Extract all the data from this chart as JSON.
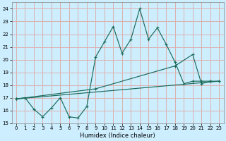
{
  "title": "",
  "xlabel": "Humidex (Indice chaleur)",
  "bg_color": "#cceeff",
  "grid_color": "#ddb0b0",
  "line_color": "#1a6b5a",
  "xlim": [
    -0.5,
    23.5
  ],
  "ylim": [
    15,
    24.5
  ],
  "yticks": [
    15,
    16,
    17,
    18,
    19,
    20,
    21,
    22,
    23,
    24
  ],
  "xticks": [
    0,
    1,
    2,
    3,
    4,
    5,
    6,
    7,
    8,
    9,
    10,
    11,
    12,
    13,
    14,
    15,
    16,
    17,
    18,
    19,
    20,
    21,
    22,
    23
  ],
  "series": [
    {
      "x": [
        0,
        1,
        2,
        3,
        4,
        5,
        6,
        7,
        8,
        9,
        10,
        11,
        12,
        13,
        14,
        15,
        16,
        17,
        18,
        19,
        20,
        21,
        22
      ],
      "y": [
        16.9,
        17.0,
        16.1,
        15.5,
        16.2,
        17.0,
        15.5,
        15.4,
        16.3,
        20.2,
        21.4,
        22.6,
        20.5,
        21.6,
        24.0,
        21.6,
        22.5,
        21.2,
        19.8,
        18.1,
        18.3,
        18.3,
        18.3
      ]
    },
    {
      "x": [
        0,
        9,
        18,
        20,
        21,
        22,
        23
      ],
      "y": [
        16.9,
        17.7,
        19.5,
        20.4,
        18.1,
        18.3,
        18.3
      ]
    },
    {
      "x": [
        0,
        23
      ],
      "y": [
        16.9,
        18.3
      ]
    }
  ]
}
